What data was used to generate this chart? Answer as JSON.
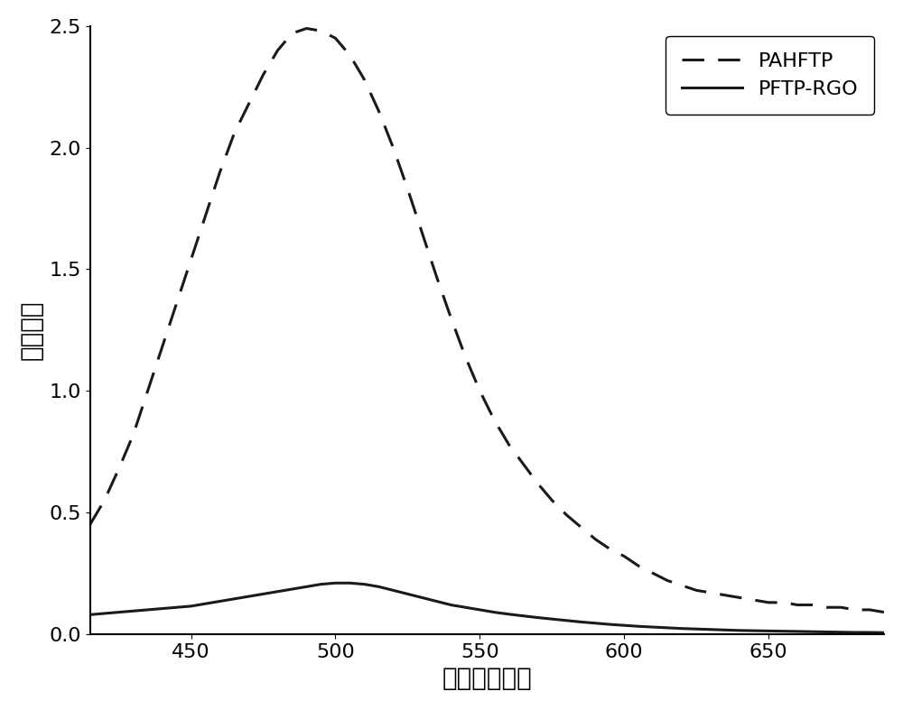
{
  "title": "",
  "xlabel": "波长（纳米）",
  "ylabel": "荧光强度",
  "xlim": [
    415,
    690
  ],
  "ylim": [
    0.0,
    2.5
  ],
  "yticks": [
    0.0,
    0.5,
    1.0,
    1.5,
    2.0,
    2.5
  ],
  "xticks": [
    450,
    500,
    550,
    600,
    650
  ],
  "background_color": "#ffffff",
  "legend_labels": [
    "PAHFTP",
    "PFTP-RGO"
  ],
  "pahftp_x": [
    415,
    420,
    425,
    430,
    435,
    440,
    445,
    450,
    455,
    460,
    465,
    470,
    475,
    480,
    485,
    490,
    495,
    500,
    505,
    510,
    515,
    520,
    525,
    530,
    535,
    540,
    545,
    550,
    555,
    560,
    565,
    570,
    575,
    580,
    585,
    590,
    595,
    600,
    605,
    610,
    615,
    620,
    625,
    630,
    635,
    640,
    645,
    650,
    655,
    660,
    665,
    670,
    675,
    680,
    685,
    690
  ],
  "pahftp_y": [
    0.45,
    0.55,
    0.68,
    0.82,
    1.0,
    1.18,
    1.36,
    1.54,
    1.72,
    1.9,
    2.06,
    2.18,
    2.3,
    2.4,
    2.47,
    2.49,
    2.48,
    2.45,
    2.38,
    2.28,
    2.15,
    2.0,
    1.83,
    1.65,
    1.47,
    1.3,
    1.14,
    1.0,
    0.88,
    0.78,
    0.7,
    0.62,
    0.55,
    0.49,
    0.44,
    0.39,
    0.35,
    0.32,
    0.28,
    0.25,
    0.22,
    0.2,
    0.18,
    0.17,
    0.16,
    0.15,
    0.14,
    0.13,
    0.13,
    0.12,
    0.12,
    0.11,
    0.11,
    0.1,
    0.1,
    0.09
  ],
  "pftprgo_x": [
    415,
    420,
    425,
    430,
    435,
    440,
    445,
    450,
    455,
    460,
    465,
    470,
    475,
    480,
    485,
    490,
    495,
    500,
    505,
    510,
    515,
    520,
    525,
    530,
    535,
    540,
    545,
    550,
    555,
    560,
    565,
    570,
    575,
    580,
    585,
    590,
    595,
    600,
    605,
    610,
    615,
    620,
    625,
    630,
    635,
    640,
    645,
    650,
    655,
    660,
    665,
    670,
    675,
    680,
    685,
    690
  ],
  "pftprgo_y": [
    0.08,
    0.085,
    0.09,
    0.095,
    0.1,
    0.105,
    0.11,
    0.115,
    0.125,
    0.135,
    0.145,
    0.155,
    0.165,
    0.175,
    0.185,
    0.195,
    0.205,
    0.21,
    0.21,
    0.205,
    0.195,
    0.18,
    0.165,
    0.15,
    0.135,
    0.12,
    0.11,
    0.1,
    0.09,
    0.082,
    0.075,
    0.068,
    0.062,
    0.056,
    0.05,
    0.045,
    0.04,
    0.036,
    0.032,
    0.029,
    0.026,
    0.023,
    0.021,
    0.019,
    0.017,
    0.015,
    0.014,
    0.013,
    0.012,
    0.011,
    0.01,
    0.009,
    0.008,
    0.007,
    0.007,
    0.006
  ],
  "line_color": "#1a1a1a",
  "line_width": 2.2,
  "xlabel_fontsize": 20,
  "ylabel_fontsize": 20,
  "tick_fontsize": 16,
  "legend_fontsize": 16
}
